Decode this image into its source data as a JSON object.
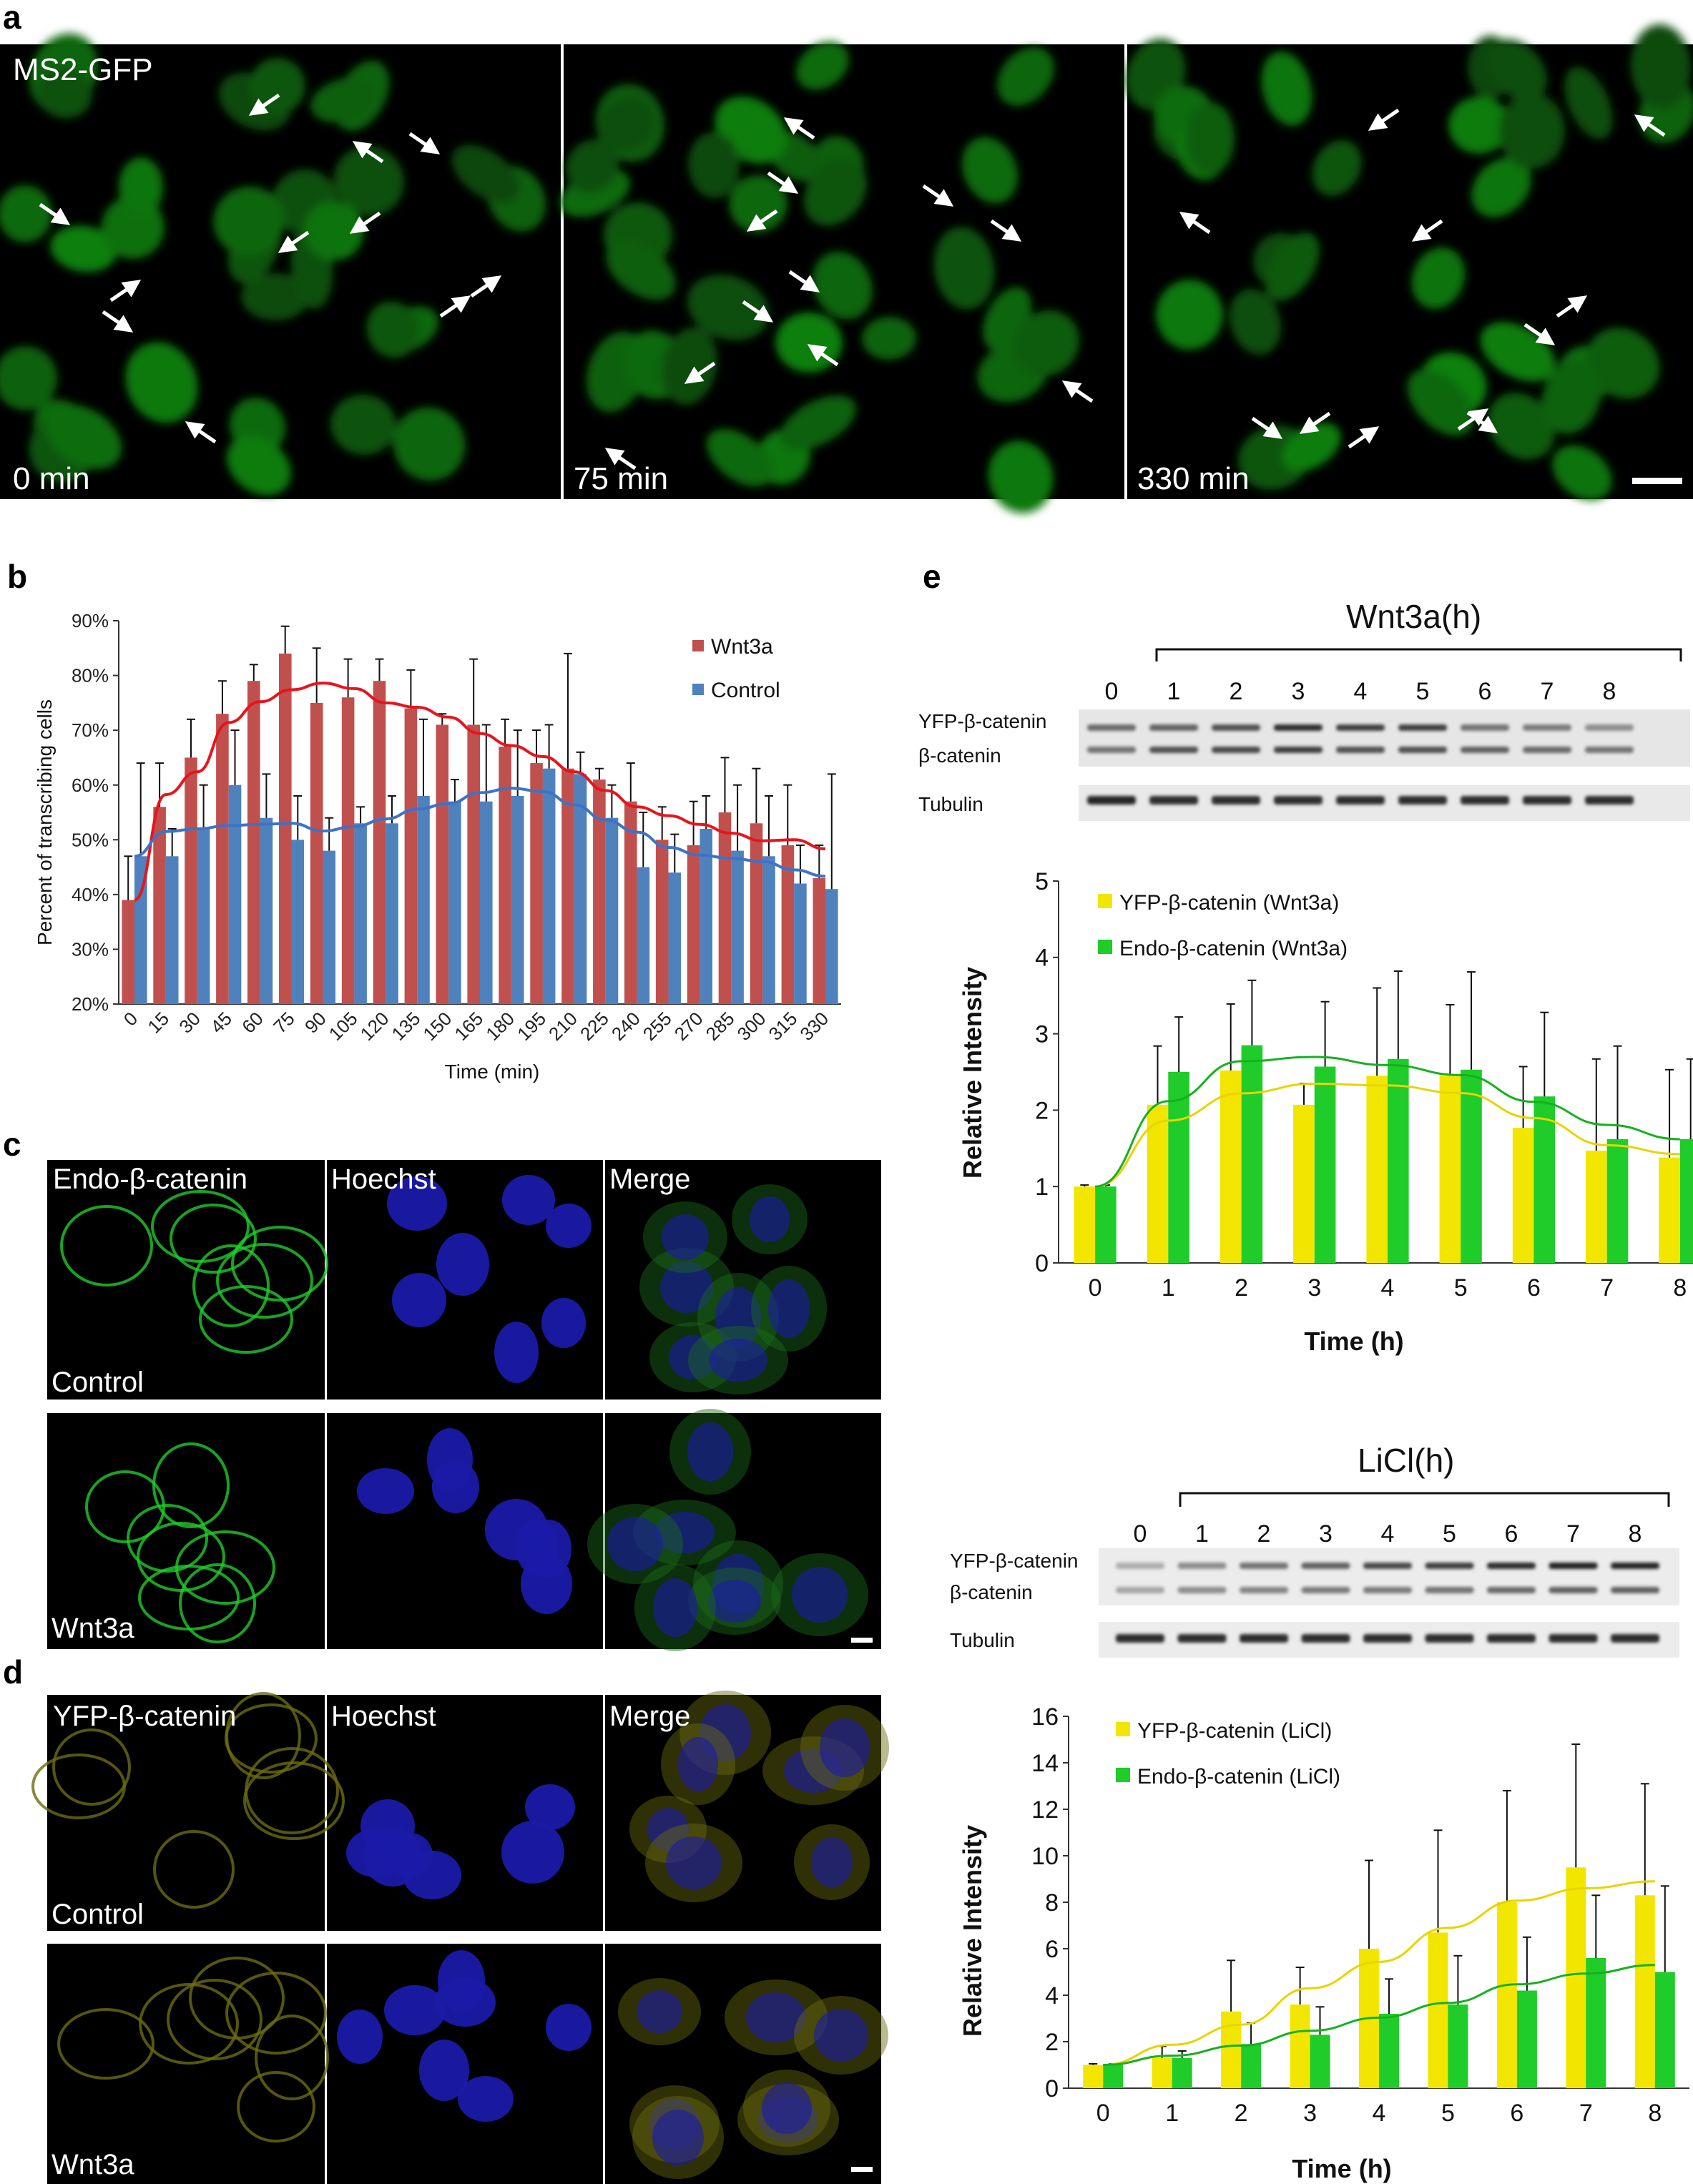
{
  "panels": {
    "a": "a",
    "b": "b",
    "c": "c",
    "d": "d",
    "e": "e"
  },
  "panel_a": {
    "label": "MS2-GFP",
    "times": [
      "0 min",
      "75 min",
      "330 min"
    ]
  },
  "panel_c": {
    "col_titles": [
      "Endo-β-catenin",
      "Hoechst",
      "Merge"
    ],
    "row_labels": [
      "Control",
      "Wnt3a"
    ]
  },
  "panel_d": {
    "col_titles": [
      "YFP-β-catenin",
      "Hoechst",
      "Merge"
    ],
    "row_labels": [
      "Control",
      "Wnt3a"
    ]
  },
  "blot_wnt": {
    "title": "Wnt3a",
    "unit": "(h)",
    "lanes": [
      "0",
      "1",
      "2",
      "3",
      "4",
      "5",
      "6",
      "7",
      "8"
    ],
    "rows": [
      "YFP-β-catenin",
      "β-catenin",
      "Tubulin"
    ]
  },
  "blot_licl": {
    "title": "LiCl",
    "unit": "(h)",
    "lanes": [
      "0",
      "1",
      "2",
      "3",
      "4",
      "5",
      "6",
      "7",
      "8"
    ],
    "rows": [
      "YFP-β-catenin",
      "β-catenin",
      "Tubulin"
    ]
  },
  "colors": {
    "wnt3a_bar": "#c0504d",
    "control_bar": "#4f81bd",
    "wnt3a_fit": "#e8141c",
    "control_fit": "#3d73c4",
    "yfp": "#f2e600",
    "endo": "#1fcc2a",
    "gfp_nuclei": "#1c6a1c",
    "hoechst": "#1a1aa8",
    "yfp_cells": "#6b6b10"
  },
  "chart_data": [
    {
      "id": "b",
      "type": "bar",
      "ylabel": "Percent of transcribing cells",
      "xlabel": "Time (min)",
      "ylim": [
        20,
        90
      ],
      "yticks": [
        "20%",
        "30%",
        "40%",
        "50%",
        "60%",
        "70%",
        "80%",
        "90%"
      ],
      "categories": [
        "0",
        "15",
        "30",
        "45",
        "60",
        "75",
        "90",
        "105",
        "120",
        "135",
        "150",
        "165",
        "180",
        "195",
        "210",
        "225",
        "240",
        "255",
        "270",
        "285",
        "300",
        "315",
        "330"
      ],
      "series": [
        {
          "name": "Wnt3a",
          "values": [
            39,
            56,
            65,
            73,
            79,
            84,
            75,
            76,
            79,
            74,
            71,
            71,
            67,
            64,
            63,
            61,
            57,
            50,
            49,
            55,
            53,
            49,
            43
          ],
          "err": [
            8,
            8,
            7,
            6,
            3,
            5,
            10,
            7,
            4,
            7,
            2,
            12,
            5,
            6,
            21,
            2,
            7,
            6,
            8,
            10,
            10,
            11,
            6
          ]
        },
        {
          "name": "Control",
          "values": [
            47,
            47,
            52,
            60,
            54,
            50,
            48,
            53,
            53,
            58,
            57,
            57,
            58,
            63,
            62,
            54,
            45,
            44,
            52,
            48,
            47,
            42,
            41
          ],
          "err": [
            17,
            5,
            8,
            10,
            8,
            8,
            6,
            3,
            5,
            14,
            4,
            14,
            12,
            8,
            4,
            6,
            10,
            7,
            6,
            12,
            11,
            7,
            21
          ]
        }
      ],
      "fits": [
        "Wnt3a",
        "Control"
      ],
      "legend": "top-right"
    },
    {
      "id": "e-wnt3a",
      "type": "bar",
      "ylabel": "Relative Intensity",
      "xlabel": "Time (h)",
      "ylim": [
        0,
        5
      ],
      "yticks": [
        "0",
        "1",
        "2",
        "3",
        "4",
        "5"
      ],
      "categories": [
        "0",
        "1",
        "2",
        "3",
        "4",
        "5",
        "6",
        "7",
        "8"
      ],
      "series": [
        {
          "name": "YFP-β-catenin (Wnt3a)",
          "values": [
            1.0,
            2.07,
            2.52,
            2.07,
            2.45,
            2.45,
            1.77,
            1.47,
            1.38
          ],
          "err": [
            0.02,
            0.77,
            0.87,
            0.28,
            1.15,
            0.93,
            0.8,
            1.2,
            1.15
          ]
        },
        {
          "name": "Endo-β-catenin (Wnt3a)",
          "values": [
            1.0,
            2.5,
            2.85,
            2.57,
            2.67,
            2.53,
            2.18,
            1.62,
            1.62
          ],
          "err": [
            0.02,
            0.72,
            0.85,
            0.85,
            1.15,
            1.28,
            1.1,
            1.22,
            1.05
          ]
        }
      ],
      "fits": [
        "YFP-β-catenin (Wnt3a)",
        "Endo-β-catenin (Wnt3a)"
      ],
      "legend": "top-left"
    },
    {
      "id": "e-licl",
      "type": "bar",
      "ylabel": "Relative Intensity",
      "xlabel": "Time (h)",
      "ylim": [
        0,
        16
      ],
      "yticks": [
        "0",
        "2",
        "4",
        "6",
        "8",
        "10",
        "12",
        "14",
        "16"
      ],
      "categories": [
        "0",
        "1",
        "2",
        "3",
        "4",
        "5",
        "6",
        "7",
        "8"
      ],
      "series": [
        {
          "name": "YFP-β-catenin (LiCl)",
          "values": [
            1.0,
            1.3,
            3.3,
            3.6,
            6.0,
            6.7,
            8.0,
            9.5,
            8.3
          ],
          "err": [
            0.05,
            0.5,
            2.2,
            1.6,
            3.8,
            4.4,
            4.8,
            5.3,
            4.8
          ]
        },
        {
          "name": "Endo-β-catenin (LiCl)",
          "values": [
            1.0,
            1.3,
            1.9,
            2.3,
            3.2,
            3.6,
            4.2,
            5.6,
            5.0
          ],
          "err": [
            0.05,
            0.3,
            0.9,
            1.2,
            1.5,
            2.1,
            2.3,
            2.7,
            3.7
          ]
        }
      ],
      "fits": [
        "YFP-β-catenin (LiCl)",
        "Endo-β-catenin (LiCl)"
      ],
      "legend": "top-left"
    }
  ]
}
